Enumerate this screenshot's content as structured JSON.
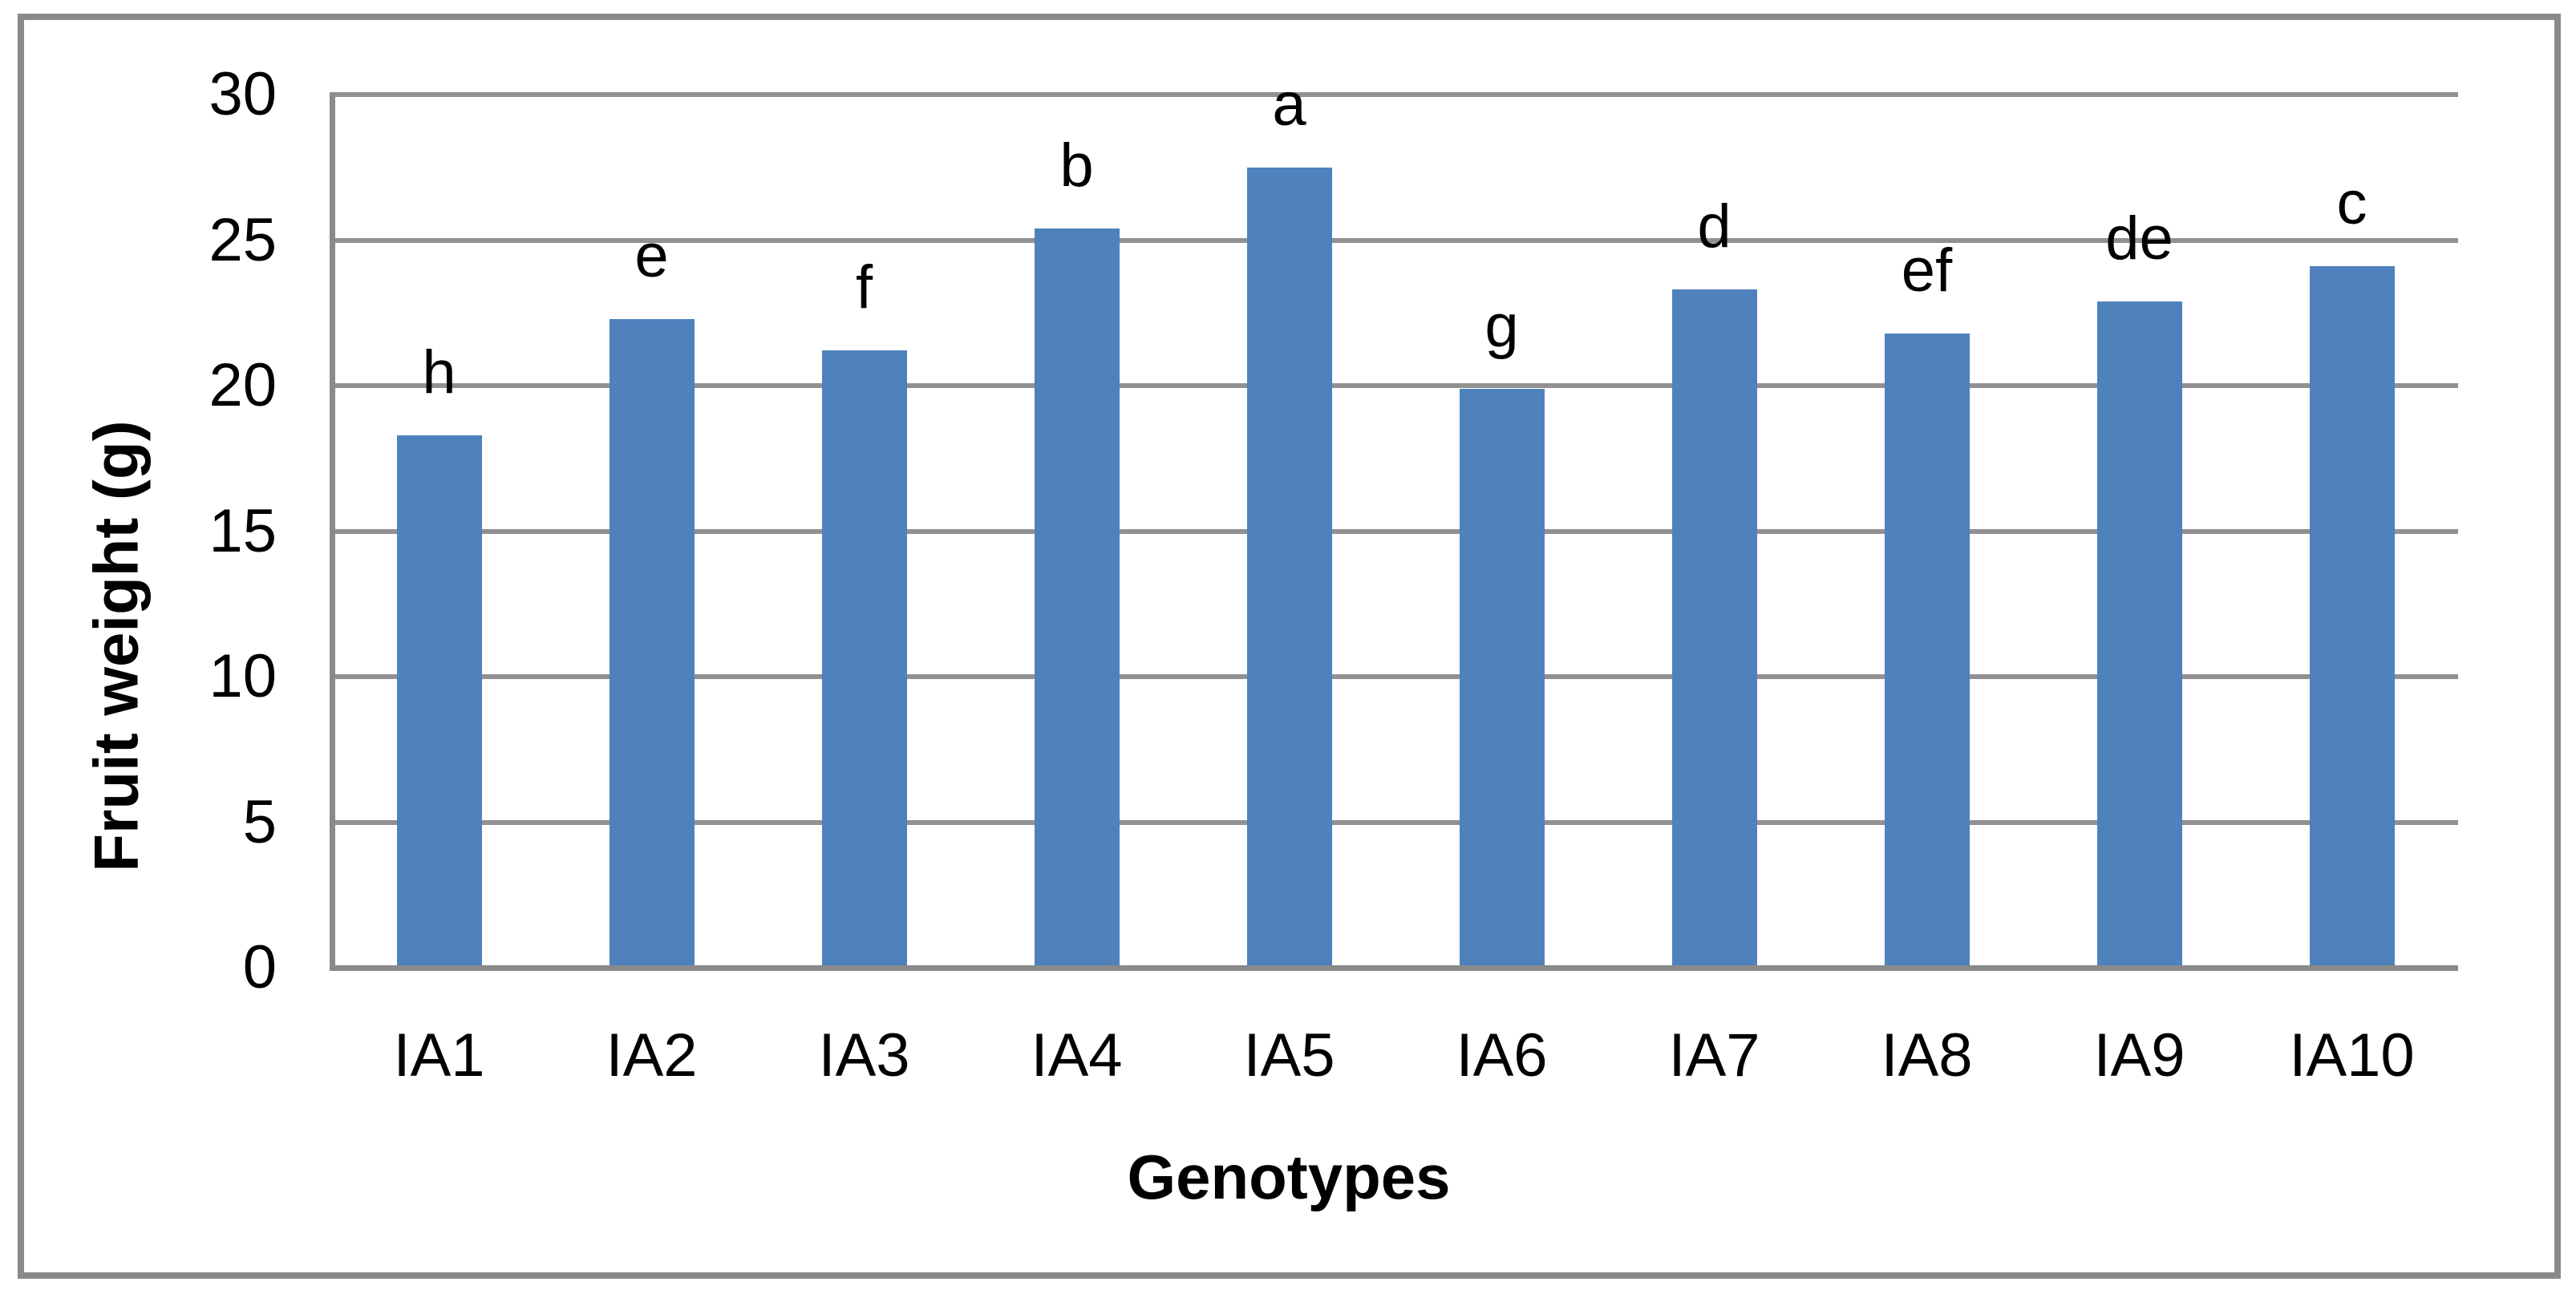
{
  "chart_data": {
    "type": "bar",
    "title": "",
    "categories": [
      "IA1",
      "IA2",
      "IA3",
      "IA4",
      "IA5",
      "IA6",
      "IA7",
      "IA8",
      "IA9",
      "IA10"
    ],
    "values": [
      18.3,
      22.3,
      21.2,
      25.4,
      27.5,
      19.9,
      23.3,
      21.8,
      22.9,
      24.1
    ],
    "bar_labels": [
      "h",
      "e",
      "f",
      "b",
      "a",
      "g",
      "d",
      "ef",
      "de",
      "c"
    ],
    "xlabel": "Genotypes",
    "ylabel": "Fruit weight (g)",
    "ylim": [
      0,
      30
    ],
    "yticks": [
      0,
      5,
      10,
      15,
      20,
      25,
      30
    ],
    "grid": "horizontal",
    "legend_position": "none",
    "colors": {
      "bar": "#4f81bd",
      "gridline": "#919191",
      "axis": "#8a8a8a",
      "border": "#8a8a8a",
      "text": "#000000"
    }
  }
}
